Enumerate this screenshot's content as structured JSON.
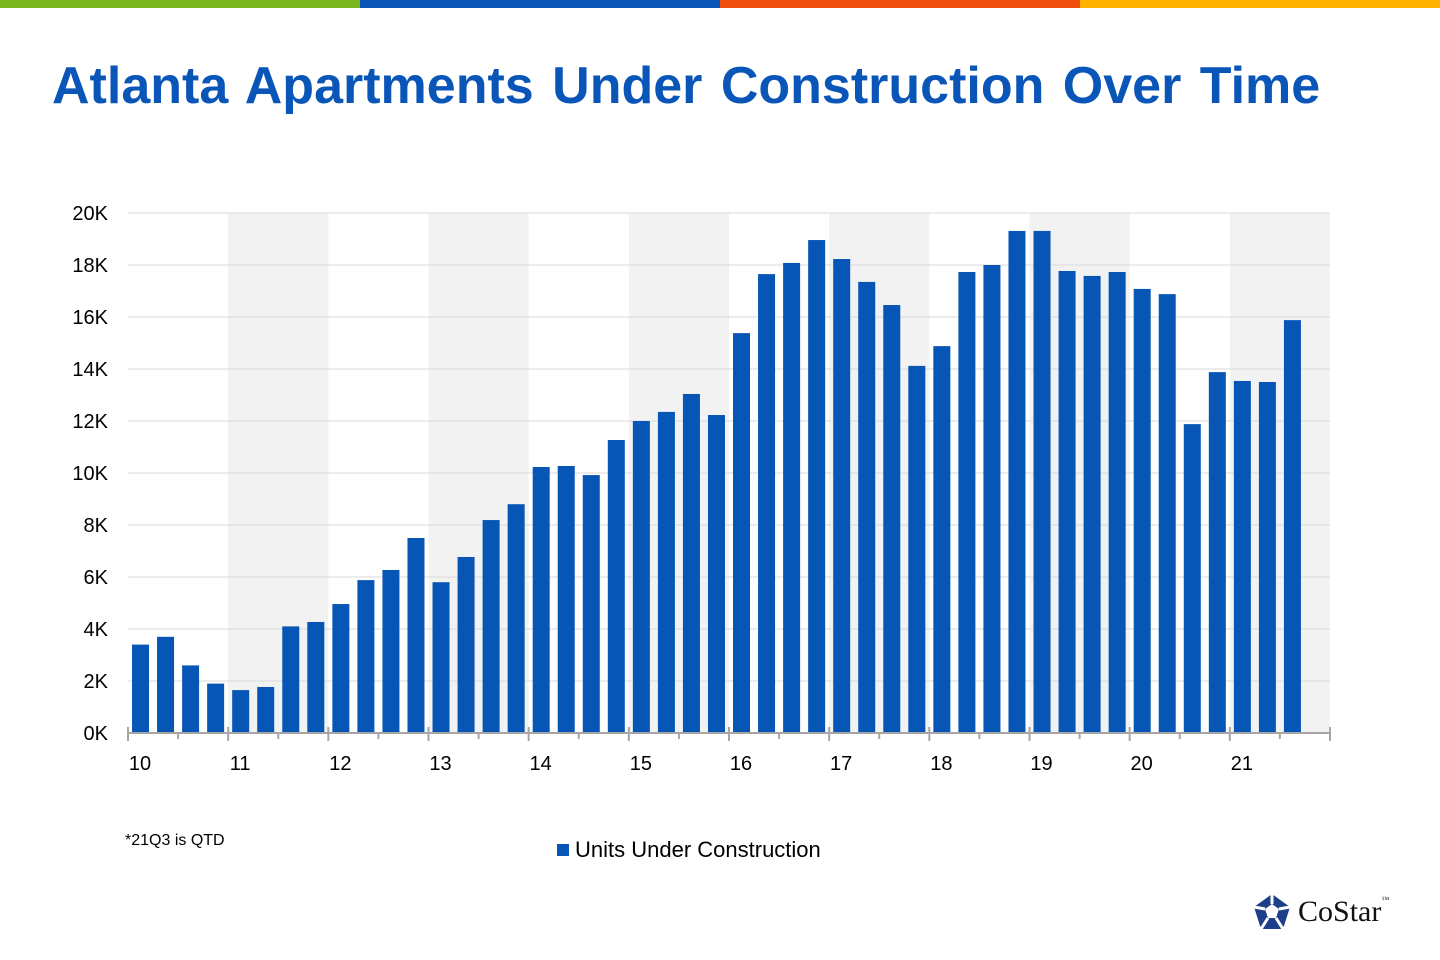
{
  "header": {
    "title": "Atlanta Apartments Under Construction Over Time",
    "stripe_colors": [
      "#7ab51d",
      "#0a56b8",
      "#f04e0c",
      "#ffb300"
    ]
  },
  "footnote": "*21Q3 is QTD",
  "logo": {
    "text": "CoStar",
    "tm": "™"
  },
  "chart_data": {
    "type": "bar",
    "title": "Atlanta Apartments Under Construction Over Time",
    "xlabel": "",
    "ylabel": "",
    "ylim": [
      0,
      20000
    ],
    "yticks": [
      "0K",
      "2K",
      "4K",
      "6K",
      "8K",
      "10K",
      "12K",
      "14K",
      "16K",
      "18K",
      "20K"
    ],
    "xtick_labels": [
      "10",
      "11",
      "12",
      "13",
      "14",
      "15",
      "16",
      "17",
      "18",
      "19",
      "20",
      "21"
    ],
    "grid": true,
    "alternating_year_shading": true,
    "bar_color": "#0755b5",
    "legend_position": "bottom",
    "categories": [
      "10Q1",
      "10Q2",
      "10Q3",
      "10Q4",
      "11Q1",
      "11Q2",
      "11Q3",
      "11Q4",
      "12Q1",
      "12Q2",
      "12Q3",
      "12Q4",
      "13Q1",
      "13Q2",
      "13Q3",
      "13Q4",
      "14Q1",
      "14Q2",
      "14Q3",
      "14Q4",
      "15Q1",
      "15Q2",
      "15Q3",
      "15Q4",
      "16Q1",
      "16Q2",
      "16Q3",
      "16Q4",
      "17Q1",
      "17Q2",
      "17Q3",
      "17Q4",
      "18Q1",
      "18Q2",
      "18Q3",
      "18Q4",
      "19Q1",
      "19Q2",
      "19Q3",
      "19Q4",
      "20Q1",
      "20Q2",
      "20Q3",
      "20Q4",
      "21Q1",
      "21Q2",
      "21Q3"
    ],
    "series": [
      {
        "name": "Units Under Construction",
        "values": [
          3400,
          3700,
          2600,
          1900,
          1650,
          1770,
          4100,
          4270,
          4960,
          5880,
          6270,
          7500,
          5800,
          6770,
          8190,
          8800,
          10230,
          10270,
          9920,
          11270,
          12000,
          12350,
          13040,
          12230,
          15380,
          17650,
          18080,
          18960,
          18230,
          17350,
          16460,
          14120,
          14880,
          17730,
          18000,
          19310,
          19310,
          17770,
          17580,
          17730,
          17080,
          16880,
          11880,
          13880,
          13540,
          13500,
          15880
        ]
      }
    ]
  }
}
